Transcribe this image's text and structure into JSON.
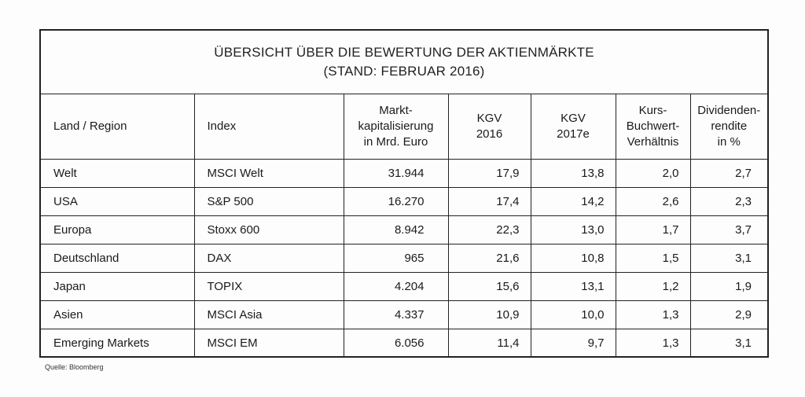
{
  "title_line1": "ÜBERSICHT ÜBER DIE BEWERTUNG DER AKTIENMÄRKTE",
  "title_line2": "(STAND: FEBRUAR 2016)",
  "headers": {
    "land": "Land / Region",
    "index": "Index",
    "mkap": [
      "Markt-",
      "kapitalisierung",
      "in Mrd. Euro"
    ],
    "kgv2016": [
      "KGV",
      "2016"
    ],
    "kgv2017": [
      "KGV",
      "2017e"
    ],
    "kbv": [
      "Kurs-",
      "Buchwert-",
      "Verhältnis"
    ],
    "div": [
      "Dividenden-",
      "rendite",
      "in %"
    ]
  },
  "rows": [
    {
      "land": "Welt",
      "index": "MSCI Welt",
      "mkap": "31.944",
      "kgv2016": "17,9",
      "kgv2017": "13,8",
      "kbv": "2,0",
      "div": "2,7"
    },
    {
      "land": "USA",
      "index": "S&P 500",
      "mkap": "16.270",
      "kgv2016": "17,4",
      "kgv2017": "14,2",
      "kbv": "2,6",
      "div": "2,3"
    },
    {
      "land": "Europa",
      "index": "Stoxx 600",
      "mkap": "8.942",
      "kgv2016": "22,3",
      "kgv2017": "13,0",
      "kbv": "1,7",
      "div": "3,7"
    },
    {
      "land": "Deutschland",
      "index": "DAX",
      "mkap": "965",
      "kgv2016": "21,6",
      "kgv2017": "10,8",
      "kbv": "1,5",
      "div": "3,1"
    },
    {
      "land": "Japan",
      "index": "TOPIX",
      "mkap": "4.204",
      "kgv2016": "15,6",
      "kgv2017": "13,1",
      "kbv": "1,2",
      "div": "1,9"
    },
    {
      "land": "Asien",
      "index": "MSCI Asia",
      "mkap": "4.337",
      "kgv2016": "10,9",
      "kgv2017": "10,0",
      "kbv": "1,3",
      "div": "2,9"
    },
    {
      "land": "Emerging Markets",
      "index": "MSCI EM",
      "mkap": "6.056",
      "kgv2016": "11,4",
      "kgv2017": "9,7",
      "kbv": "1,3",
      "div": "3,1"
    }
  ],
  "source": "Quelle: Bloomberg"
}
